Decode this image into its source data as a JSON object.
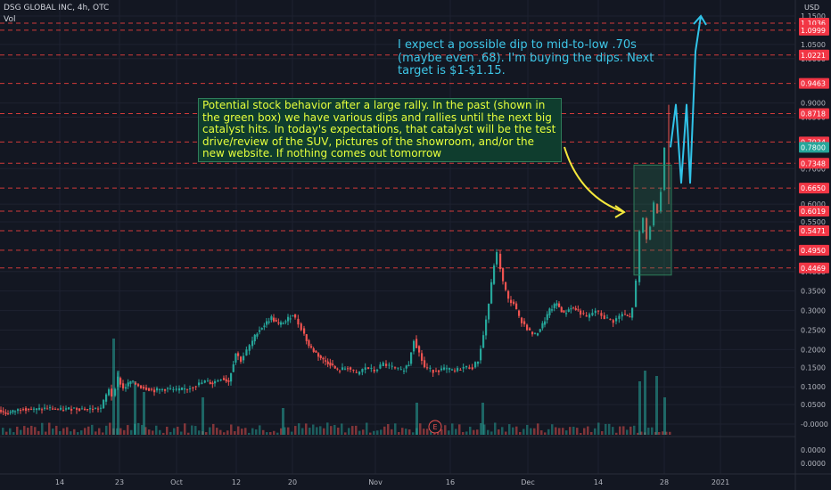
{
  "header": {
    "title": "DSG GLOBAL INC, 4h, OTC",
    "volume_label": "Vol",
    "currency": "USD"
  },
  "colors": {
    "up": "#26a69a",
    "down": "#ef5350",
    "grid": "#1e2230",
    "axis_text": "#b2b5be",
    "level_line": "#d23a3a",
    "level_badge": "#f23645",
    "current_badge": "#26a69a",
    "arrow_yellow": "#f5e83c",
    "arrow_blue": "#31c3e8",
    "box": "#2e7d5a"
  },
  "annotations": {
    "green_note": "Potential stock behavior after a large rally. In the past (shown in the green box) we have various dips and rallies until the next big catalyst hits. In today's expectations, that catalyst will be the test drive/review of the SUV, pictures of the showroom, and/or the new website. If nothing comes out tomorrow",
    "blue_note": "I expect a possible dip to mid-to-low .70s (maybe even .68). I'm buying the dips. Next target is $1-$1.15.",
    "earnings_marker": "E"
  },
  "chart_data": {
    "type": "candlestick",
    "title": "DSG GLOBAL INC, 4h, OTC",
    "ylabel": "USD",
    "ylim": [
      -0.03,
      1.16
    ],
    "x_ticks": [
      "14",
      "23",
      "Oct",
      "12",
      "20",
      "Nov",
      "16",
      "Dec",
      "14",
      "28",
      "2021"
    ],
    "y_ticks": [
      "1.1500",
      "1.0500",
      "1.0000",
      "0.9000",
      "0.8500",
      "0.7000",
      "0.6000",
      "0.5500",
      "0.4000",
      "0.3500",
      "0.3000",
      "0.2500",
      "0.2000",
      "0.1500",
      "0.1000",
      "0.0500",
      "-0.0000"
    ],
    "price_levels": [
      "1.1036",
      "1.0999",
      "1.0221",
      "0.9463",
      "0.8718",
      "0.7934",
      "0.7348",
      "0.6650",
      "0.6019",
      "0.5471",
      "0.4950",
      "0.4469"
    ],
    "current_price": "0.7800",
    "volume_axis_ticks": [
      "0.0000",
      "0.0000"
    ],
    "price_series": [
      [
        0,
        0.04
      ],
      [
        8,
        0.03
      ],
      [
        16,
        0.035
      ],
      [
        28,
        0.045
      ],
      [
        40,
        0.04
      ],
      [
        55,
        0.045
      ],
      [
        70,
        0.04
      ],
      [
        85,
        0.045
      ],
      [
        100,
        0.042
      ],
      [
        115,
        0.045
      ],
      [
        124,
        0.1
      ],
      [
        128,
        0.08
      ],
      [
        134,
        0.13
      ],
      [
        140,
        0.1
      ],
      [
        148,
        0.12
      ],
      [
        160,
        0.105
      ],
      [
        175,
        0.095
      ],
      [
        190,
        0.1
      ],
      [
        200,
        0.095
      ],
      [
        212,
        0.1
      ],
      [
        222,
        0.11
      ],
      [
        232,
        0.12
      ],
      [
        240,
        0.115
      ],
      [
        250,
        0.13
      ],
      [
        258,
        0.12
      ],
      [
        266,
        0.2
      ],
      [
        272,
        0.18
      ],
      [
        282,
        0.22
      ],
      [
        290,
        0.26
      ],
      [
        298,
        0.28
      ],
      [
        306,
        0.3
      ],
      [
        314,
        0.28
      ],
      [
        322,
        0.29
      ],
      [
        330,
        0.31
      ],
      [
        340,
        0.27
      ],
      [
        348,
        0.22
      ],
      [
        356,
        0.2
      ],
      [
        364,
        0.18
      ],
      [
        372,
        0.17
      ],
      [
        380,
        0.15
      ],
      [
        392,
        0.16
      ],
      [
        402,
        0.14
      ],
      [
        412,
        0.16
      ],
      [
        422,
        0.15
      ],
      [
        432,
        0.17
      ],
      [
        442,
        0.16
      ],
      [
        452,
        0.15
      ],
      [
        460,
        0.17
      ],
      [
        466,
        0.24
      ],
      [
        472,
        0.2
      ],
      [
        478,
        0.16
      ],
      [
        488,
        0.15
      ],
      [
        500,
        0.155
      ],
      [
        512,
        0.15
      ],
      [
        522,
        0.16
      ],
      [
        532,
        0.16
      ],
      [
        538,
        0.18
      ],
      [
        544,
        0.25
      ],
      [
        550,
        0.34
      ],
      [
        556,
        0.45
      ],
      [
        560,
        0.48
      ],
      [
        566,
        0.4
      ],
      [
        572,
        0.35
      ],
      [
        578,
        0.34
      ],
      [
        584,
        0.3
      ],
      [
        590,
        0.28
      ],
      [
        596,
        0.26
      ],
      [
        602,
        0.25
      ],
      [
        610,
        0.28
      ],
      [
        618,
        0.32
      ],
      [
        626,
        0.34
      ],
      [
        634,
        0.31
      ],
      [
        642,
        0.33
      ],
      [
        650,
        0.32
      ],
      [
        660,
        0.3
      ],
      [
        670,
        0.32
      ],
      [
        680,
        0.3
      ],
      [
        690,
        0.29
      ],
      [
        700,
        0.31
      ],
      [
        708,
        0.3
      ],
      [
        712,
        0.33
      ],
      [
        716,
        0.4
      ],
      [
        720,
        0.54
      ],
      [
        724,
        0.58
      ],
      [
        728,
        0.52
      ],
      [
        732,
        0.56
      ],
      [
        736,
        0.62
      ],
      [
        740,
        0.6
      ],
      [
        744,
        0.66
      ],
      [
        748,
        0.78
      ]
    ],
    "projection": [
      [
        752,
        0.78
      ],
      [
        758,
        0.9
      ],
      [
        764,
        0.68
      ],
      [
        770,
        0.9
      ],
      [
        774,
        0.68
      ],
      [
        780,
        1.05
      ],
      [
        786,
        1.15
      ]
    ],
    "green_box": {
      "x_from": 711,
      "x_to": 753,
      "y_from": 0.42,
      "y_to": 0.73
    },
    "volume": [
      [
        126,
        0.9
      ],
      [
        131,
        0.6
      ],
      [
        150,
        0.5
      ],
      [
        160,
        0.4
      ],
      [
        226,
        0.35
      ],
      [
        316,
        0.25
      ],
      [
        466,
        0.3
      ],
      [
        540,
        0.3
      ],
      [
        716,
        0.5
      ],
      [
        722,
        0.6
      ],
      [
        735,
        0.55
      ],
      [
        744,
        0.35
      ]
    ]
  }
}
